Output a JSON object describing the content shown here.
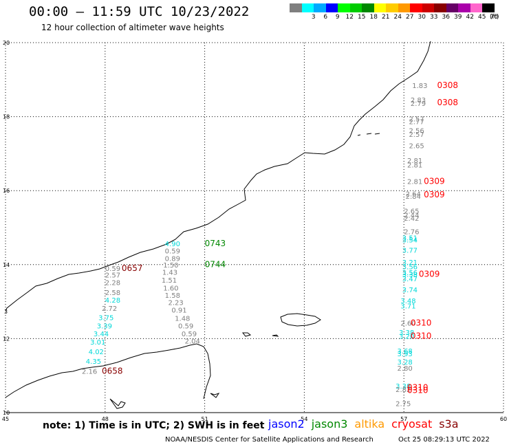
{
  "header": {
    "title": "00:00 – 11:59 UTC 10/23/2022",
    "subtitle": "12 hour collection of altimeter wave heights"
  },
  "legend": {
    "unit": "(ft)",
    "items": [
      {
        "label": "",
        "color": "#7f7f7f"
      },
      {
        "label": "3",
        "color": "#00ffff"
      },
      {
        "label": "6",
        "color": "#00aaff"
      },
      {
        "label": "9",
        "color": "#0000ff"
      },
      {
        "label": "12",
        "color": "#00ff00"
      },
      {
        "label": "15",
        "color": "#00cc00"
      },
      {
        "label": "18",
        "color": "#008800"
      },
      {
        "label": "21",
        "color": "#ffff00"
      },
      {
        "label": "24",
        "color": "#ffcc00"
      },
      {
        "label": "27",
        "color": "#ff9900"
      },
      {
        "label": "30",
        "color": "#ff0000"
      },
      {
        "label": "33",
        "color": "#cc0000"
      },
      {
        "label": "36",
        "color": "#880000"
      },
      {
        "label": "39",
        "color": "#660066"
      },
      {
        "label": "42",
        "color": "#aa00aa"
      },
      {
        "label": "45",
        "color": "#ff66cc"
      },
      {
        "label": "70",
        "color": "#000000"
      }
    ]
  },
  "axes": {
    "lon_ticks": [
      "45",
      "48",
      "51",
      "54",
      "57",
      "60"
    ],
    "lat_ticks": [
      "20",
      "18",
      "16",
      "14",
      "12",
      "10"
    ],
    "extra_tick": "3",
    "lon_range": [
      45,
      60
    ],
    "lat_range": [
      10,
      20
    ]
  },
  "observations": [
    {
      "lon": 48.0,
      "lat": 13.83,
      "v": "0.59",
      "c": "#7f7f7f"
    },
    {
      "lon": 48.0,
      "lat": 13.65,
      "v": "2.57",
      "c": "#7f7f7f"
    },
    {
      "lon": 48.0,
      "lat": 13.45,
      "v": "2.28",
      "c": "#7f7f7f"
    },
    {
      "lon": 48.0,
      "lat": 13.18,
      "v": "2.58",
      "c": "#7f7f7f"
    },
    {
      "lon": 48.0,
      "lat": 12.97,
      "v": "4.28",
      "c": "#00d8d8"
    },
    {
      "lon": 47.9,
      "lat": 12.75,
      "v": "2.72",
      "c": "#7f7f7f"
    },
    {
      "lon": 47.8,
      "lat": 12.5,
      "v": "3.75",
      "c": "#00d8d8"
    },
    {
      "lon": 47.75,
      "lat": 12.28,
      "v": "3.39",
      "c": "#00d8d8"
    },
    {
      "lon": 47.65,
      "lat": 12.06,
      "v": "3.44",
      "c": "#00d8d8"
    },
    {
      "lon": 47.55,
      "lat": 11.84,
      "v": "3.01",
      "c": "#00d8d8"
    },
    {
      "lon": 47.5,
      "lat": 11.58,
      "v": "4.02",
      "c": "#00d8d8"
    },
    {
      "lon": 47.42,
      "lat": 11.32,
      "v": "4.35",
      "c": "#00d8d8"
    },
    {
      "lon": 47.3,
      "lat": 11.05,
      "v": "2.16",
      "c": "#7f7f7f"
    },
    {
      "lon": 49.8,
      "lat": 14.5,
      "v": "4.90",
      "c": "#00d8d8"
    },
    {
      "lon": 49.8,
      "lat": 14.3,
      "v": "0.59",
      "c": "#7f7f7f"
    },
    {
      "lon": 49.8,
      "lat": 14.1,
      "v": "0.89",
      "c": "#7f7f7f"
    },
    {
      "lon": 49.75,
      "lat": 13.92,
      "v": "1.50",
      "c": "#7f7f7f"
    },
    {
      "lon": 49.72,
      "lat": 13.73,
      "v": "1.43",
      "c": "#7f7f7f"
    },
    {
      "lon": 49.7,
      "lat": 13.51,
      "v": "1.51",
      "c": "#7f7f7f"
    },
    {
      "lon": 49.75,
      "lat": 13.3,
      "v": "1.60",
      "c": "#7f7f7f"
    },
    {
      "lon": 49.8,
      "lat": 13.1,
      "v": "1.58",
      "c": "#7f7f7f"
    },
    {
      "lon": 49.9,
      "lat": 12.91,
      "v": "2.23",
      "c": "#7f7f7f"
    },
    {
      "lon": 50.0,
      "lat": 12.7,
      "v": "0.91",
      "c": "#7f7f7f"
    },
    {
      "lon": 50.1,
      "lat": 12.48,
      "v": "1.48",
      "c": "#7f7f7f"
    },
    {
      "lon": 50.2,
      "lat": 12.28,
      "v": "0.59",
      "c": "#7f7f7f"
    },
    {
      "lon": 50.3,
      "lat": 12.06,
      "v": "0.59",
      "c": "#7f7f7f"
    },
    {
      "lon": 50.4,
      "lat": 11.87,
      "v": "2.04",
      "c": "#7f7f7f"
    },
    {
      "lon": 57.25,
      "lat": 18.77,
      "v": "1.83",
      "c": "#7f7f7f"
    },
    {
      "lon": 57.2,
      "lat": 18.38,
      "v": "2.83",
      "c": "#7f7f7f"
    },
    {
      "lon": 57.2,
      "lat": 18.29,
      "v": "2.79",
      "c": "#7f7f7f"
    },
    {
      "lon": 57.15,
      "lat": 17.87,
      "v": "2.57",
      "c": "#7f7f7f"
    },
    {
      "lon": 57.15,
      "lat": 17.8,
      "v": "2.77",
      "c": "#7f7f7f"
    },
    {
      "lon": 57.15,
      "lat": 17.56,
      "v": "2.56",
      "c": "#7f7f7f"
    },
    {
      "lon": 57.15,
      "lat": 17.45,
      "v": "2.57",
      "c": "#7f7f7f"
    },
    {
      "lon": 57.15,
      "lat": 17.15,
      "v": "2.65",
      "c": "#7f7f7f"
    },
    {
      "lon": 57.1,
      "lat": 16.75,
      "v": "2.81",
      "c": "#7f7f7f"
    },
    {
      "lon": 57.1,
      "lat": 16.63,
      "v": "2.81",
      "c": "#7f7f7f"
    },
    {
      "lon": 57.1,
      "lat": 16.18,
      "v": "2.81",
      "c": "#7f7f7f"
    },
    {
      "lon": 57.05,
      "lat": 15.85,
      "v": "2.64",
      "c": "#7f7f7f"
    },
    {
      "lon": 57.05,
      "lat": 15.78,
      "v": "2.84",
      "c": "#7f7f7f"
    },
    {
      "lon": 57.0,
      "lat": 15.38,
      "v": "2.65",
      "c": "#7f7f7f"
    },
    {
      "lon": 57.0,
      "lat": 15.27,
      "v": "2.44",
      "c": "#7f7f7f"
    },
    {
      "lon": 57.0,
      "lat": 15.19,
      "v": "2.42",
      "c": "#7f7f7f"
    },
    {
      "lon": 57.0,
      "lat": 14.82,
      "v": "2.76",
      "c": "#7f7f7f"
    },
    {
      "lon": 56.95,
      "lat": 14.66,
      "v": "3.51",
      "c": "#00d8d8"
    },
    {
      "lon": 56.95,
      "lat": 14.6,
      "v": "3.54",
      "c": "#00d8d8"
    },
    {
      "lon": 56.95,
      "lat": 14.32,
      "v": "3.77",
      "c": "#00d8d8"
    },
    {
      "lon": 56.95,
      "lat": 14.0,
      "v": "3.21",
      "c": "#00d8d8"
    },
    {
      "lon": 56.95,
      "lat": 13.88,
      "v": "3.56",
      "c": "#00d8d8"
    },
    {
      "lon": 56.95,
      "lat": 13.72,
      "v": "3.56",
      "c": "#00d8d8"
    },
    {
      "lon": 56.95,
      "lat": 13.67,
      "v": "3.38",
      "c": "#00d8d8"
    },
    {
      "lon": 56.95,
      "lat": 13.55,
      "v": "3.47",
      "c": "#00d8d8"
    },
    {
      "lon": 56.95,
      "lat": 13.25,
      "v": "3.74",
      "c": "#00d8d8"
    },
    {
      "lon": 56.9,
      "lat": 12.96,
      "v": "3.48",
      "c": "#00d8d8"
    },
    {
      "lon": 56.9,
      "lat": 12.82,
      "v": "3.71",
      "c": "#00d8d8"
    },
    {
      "lon": 56.9,
      "lat": 12.35,
      "v": "2.60",
      "c": "#7f7f7f"
    },
    {
      "lon": 56.85,
      "lat": 12.1,
      "v": "3.38",
      "c": "#00d8d8"
    },
    {
      "lon": 56.85,
      "lat": 12.0,
      "v": "3.20",
      "c": "#00d8d8"
    },
    {
      "lon": 56.8,
      "lat": 11.6,
      "v": "3.68",
      "c": "#00d8d8"
    },
    {
      "lon": 56.8,
      "lat": 11.52,
      "v": "3.93",
      "c": "#00d8d8"
    },
    {
      "lon": 56.8,
      "lat": 11.3,
      "v": "3.28",
      "c": "#00d8d8"
    },
    {
      "lon": 56.8,
      "lat": 11.13,
      "v": "2.80",
      "c": "#7f7f7f"
    },
    {
      "lon": 56.75,
      "lat": 10.65,
      "v": "3.38",
      "c": "#00d8d8"
    },
    {
      "lon": 56.75,
      "lat": 10.56,
      "v": "2.82",
      "c": "#7f7f7f"
    },
    {
      "lon": 56.75,
      "lat": 10.18,
      "v": "2.75",
      "c": "#7f7f7f"
    }
  ],
  "pass_times": [
    {
      "lon": 51.0,
      "lat": 14.5,
      "t": "0743",
      "c": "#008800"
    },
    {
      "lon": 51.0,
      "lat": 13.93,
      "t": "0744",
      "c": "#008800"
    },
    {
      "lon": 48.5,
      "lat": 13.83,
      "t": "0657",
      "c": "#880000"
    },
    {
      "lon": 47.9,
      "lat": 11.05,
      "t": "0658",
      "c": "#880000"
    },
    {
      "lon": 58.0,
      "lat": 18.77,
      "t": "0308",
      "c": "#ff0000"
    },
    {
      "lon": 58.0,
      "lat": 18.31,
      "t": "0308",
      "c": "#ff0000"
    },
    {
      "lon": 57.6,
      "lat": 16.18,
      "t": "0309",
      "c": "#ff0000"
    },
    {
      "lon": 57.6,
      "lat": 15.82,
      "t": "0309",
      "c": "#ff0000"
    },
    {
      "lon": 57.45,
      "lat": 13.67,
      "t": "0309",
      "c": "#ff0000"
    },
    {
      "lon": 57.2,
      "lat": 12.35,
      "t": "0310",
      "c": "#ff0000"
    },
    {
      "lon": 57.2,
      "lat": 12.0,
      "t": "0310",
      "c": "#ff0000"
    },
    {
      "lon": 57.1,
      "lat": 10.6,
      "t": "0310",
      "c": "#ff0000"
    },
    {
      "lon": 57.1,
      "lat": 10.53,
      "t": "0310",
      "c": "#ff0000"
    }
  ],
  "footer": {
    "note": "note: 1) Time is in UTC; 2) SWH is in feet",
    "satellites": [
      {
        "name": "jason2",
        "color": "#0000ff"
      },
      {
        "name": "jason3",
        "color": "#008800"
      },
      {
        "name": "altika",
        "color": "#ff9900"
      },
      {
        "name": "cryosat",
        "color": "#ff0000"
      },
      {
        "name": "s3a",
        "color": "#880000"
      }
    ],
    "credit": "NOAA/NESDIS Center for Satellite Applications and Research",
    "timestamp": "Oct 25 08:29:13 UTC 2022"
  }
}
